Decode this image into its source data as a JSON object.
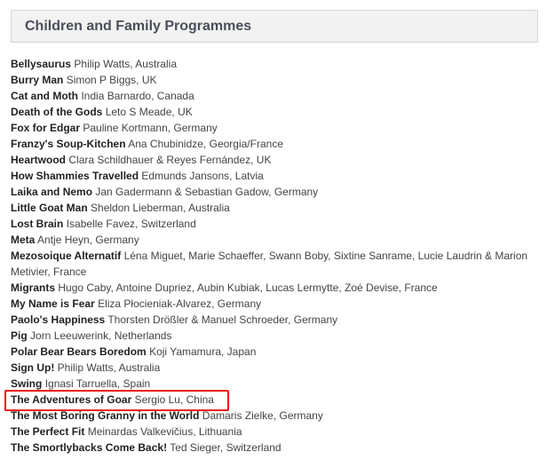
{
  "section": {
    "title": "Children and Family Programmes"
  },
  "highlight_color": "#e8191b",
  "items": [
    {
      "title": "Bellysaurus",
      "credit": "Philip Watts, Australia"
    },
    {
      "title": "Burry Man",
      "credit": "Simon P Biggs, UK"
    },
    {
      "title": "Cat and Moth",
      "credit": "India Barnardo, Canada"
    },
    {
      "title": "Death of the Gods",
      "credit": "Leto S Meade, UK"
    },
    {
      "title": "Fox for Edgar",
      "credit": "Pauline Kortmann, Germany"
    },
    {
      "title": "Franzy's Soup-Kitchen",
      "credit": "Ana Chubinidze, Georgia/France"
    },
    {
      "title": "Heartwood",
      "credit": "Clara Schildhauer & Reyes Fernández, UK"
    },
    {
      "title": "How Shammies Travelled",
      "credit": "Edmunds Jansons, Latvia"
    },
    {
      "title": "Laika and Nemo",
      "credit": "Jan Gadermann & Sebastian Gadow, Germany"
    },
    {
      "title": "Little Goat Man",
      "credit": "Sheldon Lieberman, Australia"
    },
    {
      "title": "Lost Brain",
      "credit": "Isabelle Favez, Switzerland"
    },
    {
      "title": "Meta",
      "credit": "Antje Heyn, Germany"
    },
    {
      "title": "Mezosoique Alternatif",
      "credit": "Léna Miguet, Marie Schaeffer, Swann Boby, Sixtine Sanrame, Lucie Laudrin & Marion Metivier, France"
    },
    {
      "title": "Migrants",
      "credit": "Hugo Caby, Antoine Dupriez, Aubin Kubiak, Lucas Lermytte, Zoé Devise, France"
    },
    {
      "title": "My Name is Fear",
      "credit": "Eliza Płocieniak-Alvarez, Germany"
    },
    {
      "title": "Paolo's Happiness",
      "credit": "Thorsten Drößler & Manuel Schroeder, Germany"
    },
    {
      "title": "Pig",
      "credit": "Jorn Leeuwerink, Netherlands"
    },
    {
      "title": "Polar Bear Bears Boredom",
      "credit": "Koji Yamamura, Japan"
    },
    {
      "title": "Sign Up!",
      "credit": "Philip Watts, Australia"
    },
    {
      "title": "Swing",
      "credit": "Ignasi Tarruella, Spain"
    },
    {
      "title": "The Adventures of Goar",
      "credit": "Sergio Lu, China",
      "highlighted": true
    },
    {
      "title": "The Most Boring Granny in the World",
      "credit": "Damaris Zielke, Germany"
    },
    {
      "title": "The Perfect Fit",
      "credit": "Meinardas Valkevičius, Lithuania"
    },
    {
      "title": "The Smortlybacks Come Back!",
      "credit": "Ted Sieger, Switzerland"
    }
  ]
}
